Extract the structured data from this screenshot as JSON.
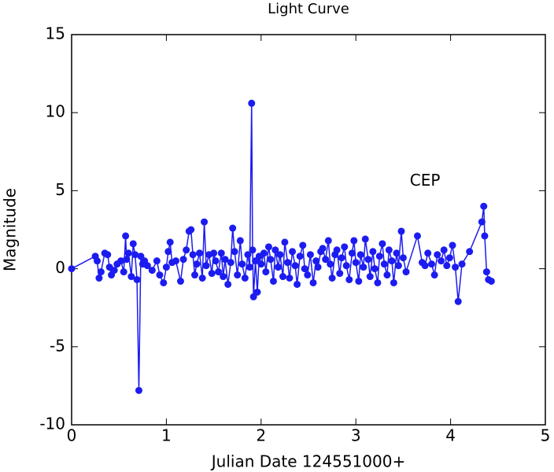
{
  "chart_data": {
    "type": "line",
    "title": "Light Curve",
    "xlabel": "Julian Date 124551000+",
    "ylabel": "Magnitude",
    "annotation": {
      "text": "CEP",
      "x": 3.73,
      "y": 5.6
    },
    "color": "#1c1cf0",
    "markers": true,
    "xlim": [
      0,
      5
    ],
    "xticks": [
      0,
      1,
      2,
      3,
      4,
      5
    ],
    "ylim": [
      -10,
      15
    ],
    "yticks": [
      -10,
      -5,
      0,
      5,
      10,
      15
    ],
    "x": [
      0,
      0.25,
      0.27,
      0.29,
      0.31,
      0.35,
      0.38,
      0.4,
      0.42,
      0.45,
      0.48,
      0.52,
      0.55,
      0.57,
      0.58,
      0.6,
      0.63,
      0.65,
      0.67,
      0.69,
      0.71,
      0.73,
      0.75,
      0.77,
      0.8,
      0.85,
      0.9,
      0.93,
      0.97,
      1.0,
      1.02,
      1.04,
      1.06,
      1.1,
      1.15,
      1.18,
      1.21,
      1.24,
      1.26,
      1.28,
      1.3,
      1.32,
      1.35,
      1.38,
      1.4,
      1.42,
      1.45,
      1.48,
      1.5,
      1.52,
      1.55,
      1.58,
      1.6,
      1.62,
      1.65,
      1.68,
      1.7,
      1.72,
      1.75,
      1.78,
      1.8,
      1.83,
      1.86,
      1.88,
      1.9,
      1.91,
      1.92,
      1.94,
      1.96,
      1.98,
      2.0,
      2.03,
      2.05,
      2.08,
      2.1,
      2.13,
      2.15,
      2.18,
      2.2,
      2.23,
      2.25,
      2.28,
      2.3,
      2.33,
      2.36,
      2.38,
      2.41,
      2.44,
      2.46,
      2.49,
      2.52,
      2.55,
      2.58,
      2.6,
      2.63,
      2.65,
      2.68,
      2.71,
      2.73,
      2.75,
      2.78,
      2.8,
      2.83,
      2.85,
      2.88,
      2.9,
      2.93,
      2.96,
      2.98,
      3.0,
      3.03,
      3.05,
      3.08,
      3.1,
      3.13,
      3.15,
      3.18,
      3.2,
      3.23,
      3.25,
      3.28,
      3.3,
      3.33,
      3.35,
      3.38,
      3.4,
      3.43,
      3.45,
      3.48,
      3.5,
      3.53,
      3.65,
      3.7,
      3.73,
      3.76,
      3.8,
      3.83,
      3.86,
      3.9,
      3.93,
      3.96,
      3.99,
      4.02,
      4.05,
      4.08,
      4.12,
      4.2,
      4.33,
      4.35,
      4.36,
      4.38,
      4.4,
      4.43
    ],
    "values": [
      0,
      0.8,
      0.5,
      -0.6,
      -0.2,
      1.0,
      0.9,
      0.1,
      -0.4,
      -0.1,
      0.3,
      0.5,
      -0.2,
      2.1,
      0.6,
      1.0,
      -0.5,
      1.6,
      0.9,
      -0.7,
      -7.8,
      0.8,
      0.3,
      0.5,
      0.2,
      -0.1,
      0.5,
      -0.4,
      -0.9,
      0.1,
      1.1,
      1.7,
      0.4,
      0.5,
      -0.8,
      0.6,
      1.2,
      2.4,
      2.5,
      0.9,
      -0.4,
      0.3,
      1.0,
      -0.6,
      3.0,
      0.2,
      0.9,
      -0.3,
      1.0,
      0.5,
      -0.2,
      1.0,
      -0.5,
      0.6,
      -1.0,
      0.4,
      2.6,
      1.1,
      -0.4,
      1.8,
      0.3,
      -0.6,
      0.9,
      0.1,
      10.6,
      1.2,
      -1.8,
      0.5,
      -1.5,
      0.8,
      0.3,
      1.0,
      -0.2,
      1.4,
      0.6,
      -0.8,
      1.2,
      0.1,
      0.9,
      -0.5,
      1.7,
      0.4,
      -0.6,
      1.1,
      0.2,
      -1.0,
      0.8,
      1.5,
      0.0,
      -0.4,
      0.9,
      -0.9,
      0.5,
      0.1,
      1.1,
      1.3,
      0.6,
      1.8,
      0.3,
      -0.6,
      0.9,
      1.2,
      -0.3,
      0.7,
      1.4,
      0.2,
      -0.7,
      1.0,
      1.8,
      0.4,
      -0.8,
      0.9,
      0.1,
      1.9,
      0.6,
      -0.5,
      1.1,
      0.0,
      -0.9,
      0.8,
      1.6,
      0.3,
      -0.4,
      1.2,
      0.5,
      -0.9,
      1.0,
      0.2,
      2.4,
      0.7,
      -0.2,
      2.1,
      0.4,
      0.2,
      1.0,
      0.3,
      -0.4,
      0.9,
      0.5,
      1.2,
      0.2,
      0.7,
      1.5,
      0.1,
      -2.1,
      0.3,
      1.1,
      3.0,
      4.0,
      2.1,
      -0.2,
      -0.7,
      -0.8
    ]
  }
}
